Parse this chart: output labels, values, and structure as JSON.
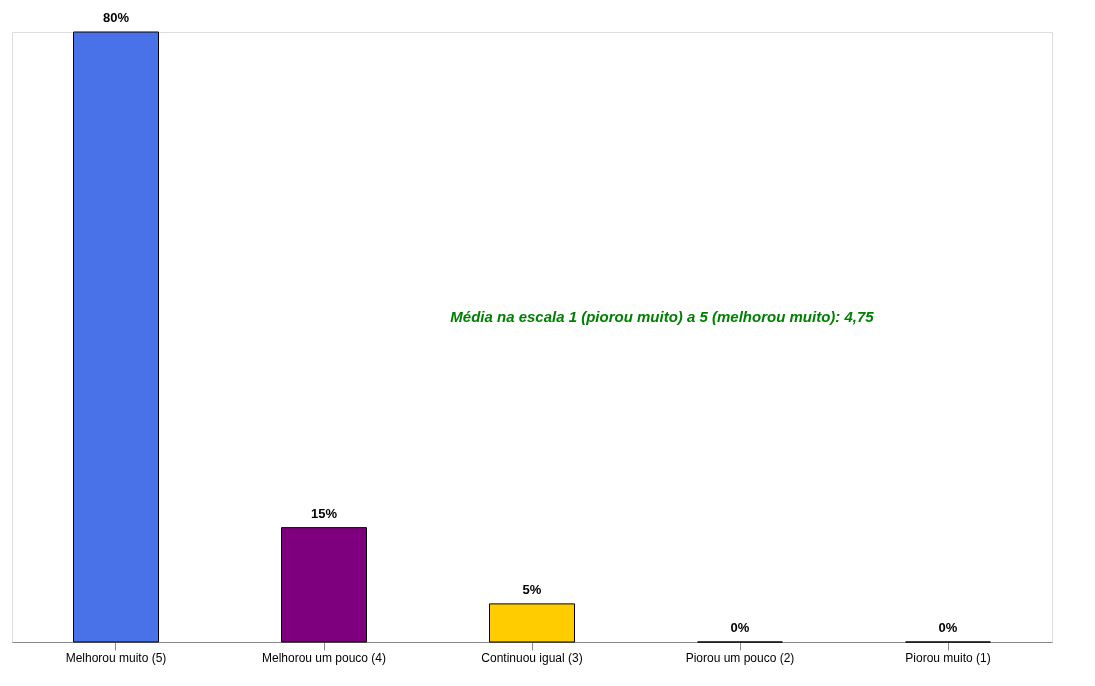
{
  "chart_data": {
    "type": "bar",
    "categories": [
      "Melhorou muito (5)",
      "Melhorou um pouco (4)",
      "Continuou igual (3)",
      "Piorou um pouco (2)",
      "Piorou muito (1)"
    ],
    "values": [
      80,
      15,
      5,
      0,
      0
    ],
    "colors": [
      "#4a72e8",
      "#7f007f",
      "#ffcc00",
      "#000000",
      "#000000"
    ],
    "value_labels": [
      "80%",
      "15%",
      "5%",
      "0%",
      "0%"
    ],
    "annotations": [
      "Média na escala 1 (piorou muito) a 5 (melhorou muito): 4,75"
    ],
    "grid": false
  }
}
